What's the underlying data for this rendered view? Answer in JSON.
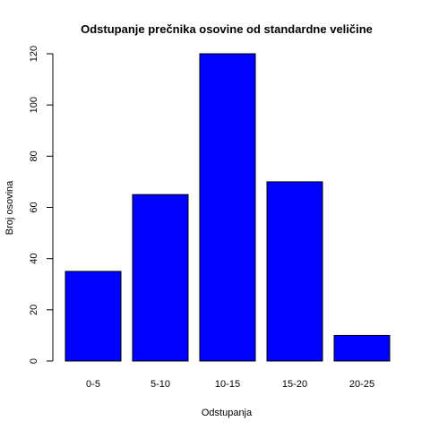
{
  "chart_data": {
    "type": "bar",
    "title": "Odstupanje prečnika osovine od standardne veličine",
    "xlabel": "Odstupanja",
    "ylabel": "Broj osovina",
    "categories": [
      "0-5",
      "5-10",
      "10-15",
      "15-20",
      "20-25"
    ],
    "values": [
      35,
      65,
      120,
      70,
      10
    ],
    "ylim": [
      0,
      120
    ],
    "yticks": [
      0,
      20,
      40,
      60,
      80,
      100,
      120
    ],
    "bar_color": "#0000ff",
    "grid": false,
    "legend": "none"
  }
}
